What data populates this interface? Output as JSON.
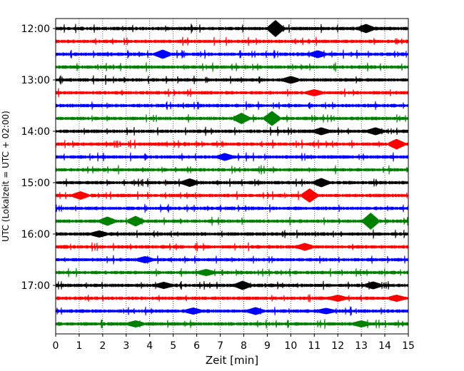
{
  "chart_data": {
    "type": "line",
    "subtype": "helicorder",
    "title": "",
    "xlabel": "Zeit  [min]",
    "ylabel": "UTC (Lokalzeit = UTC + 02:00)",
    "xlim": [
      0,
      15
    ],
    "x_ticks": [
      "0",
      "1",
      "2",
      "3",
      "4",
      "5",
      "6",
      "7",
      "8",
      "9",
      "10",
      "11",
      "12",
      "13",
      "14",
      "15"
    ],
    "y_ticks": [
      "12:00",
      "13:00",
      "14:00",
      "15:00",
      "16:00",
      "17:00"
    ],
    "trace_interval_min": 15,
    "start_time": "12:00",
    "grid": "vertical dotted at each minute",
    "legend": "none",
    "colors_cycle": [
      "#000000",
      "#ff0000",
      "#0000ff",
      "#008000"
    ],
    "series": [
      {
        "start": "12:00",
        "color": "#000000",
        "events": [
          {
            "t": 9.35,
            "amp": 1.0
          },
          {
            "t": 13.2,
            "amp": 0.45
          }
        ]
      },
      {
        "start": "12:15",
        "color": "#ff0000",
        "events": []
      },
      {
        "start": "12:30",
        "color": "#0000ff",
        "events": [
          {
            "t": 4.55,
            "amp": 0.45
          },
          {
            "t": 11.15,
            "amp": 0.35
          }
        ]
      },
      {
        "start": "12:45",
        "color": "#008000",
        "events": []
      },
      {
        "start": "13:00",
        "color": "#000000",
        "events": [
          {
            "t": 10.0,
            "amp": 0.35
          }
        ]
      },
      {
        "start": "13:15",
        "color": "#ff0000",
        "events": [
          {
            "t": 11.0,
            "amp": 0.3
          }
        ]
      },
      {
        "start": "13:30",
        "color": "#0000ff",
        "events": []
      },
      {
        "start": "13:45",
        "color": "#008000",
        "events": [
          {
            "t": 7.9,
            "amp": 0.6
          },
          {
            "t": 9.2,
            "amp": 0.85
          }
        ]
      },
      {
        "start": "14:00",
        "color": "#000000",
        "events": [
          {
            "t": 11.3,
            "amp": 0.35
          },
          {
            "t": 13.6,
            "amp": 0.35
          }
        ]
      },
      {
        "start": "14:15",
        "color": "#ff0000",
        "events": [
          {
            "t": 14.5,
            "amp": 0.55
          }
        ]
      },
      {
        "start": "14:30",
        "color": "#0000ff",
        "events": [
          {
            "t": 7.2,
            "amp": 0.35
          }
        ]
      },
      {
        "start": "14:45",
        "color": "#008000",
        "events": []
      },
      {
        "start": "15:00",
        "color": "#000000",
        "events": [
          {
            "t": 5.7,
            "amp": 0.4
          },
          {
            "t": 11.3,
            "amp": 0.45
          }
        ]
      },
      {
        "start": "15:15",
        "color": "#ff0000",
        "events": [
          {
            "t": 1.05,
            "amp": 0.4
          },
          {
            "t": 10.8,
            "amp": 0.8
          }
        ]
      },
      {
        "start": "15:30",
        "color": "#0000ff",
        "events": []
      },
      {
        "start": "15:45",
        "color": "#008000",
        "events": [
          {
            "t": 2.2,
            "amp": 0.45
          },
          {
            "t": 3.4,
            "amp": 0.55
          },
          {
            "t": 13.4,
            "amp": 1.0
          }
        ]
      },
      {
        "start": "16:00",
        "color": "#000000",
        "events": [
          {
            "t": 1.85,
            "amp": 0.3
          }
        ]
      },
      {
        "start": "16:15",
        "color": "#ff0000",
        "events": [
          {
            "t": 10.6,
            "amp": 0.35
          }
        ]
      },
      {
        "start": "16:30",
        "color": "#0000ff",
        "events": [
          {
            "t": 3.8,
            "amp": 0.3
          }
        ]
      },
      {
        "start": "16:45",
        "color": "#008000",
        "events": [
          {
            "t": 6.4,
            "amp": 0.3
          }
        ]
      },
      {
        "start": "17:00",
        "color": "#000000",
        "events": [
          {
            "t": 4.6,
            "amp": 0.3
          },
          {
            "t": 7.95,
            "amp": 0.45
          },
          {
            "t": 13.5,
            "amp": 0.35
          }
        ]
      },
      {
        "start": "17:15",
        "color": "#ff0000",
        "events": [
          {
            "t": 12.0,
            "amp": 0.3
          },
          {
            "t": 14.5,
            "amp": 0.3
          }
        ]
      },
      {
        "start": "17:30",
        "color": "#0000ff",
        "events": [
          {
            "t": 5.85,
            "amp": 0.3
          },
          {
            "t": 8.5,
            "amp": 0.35
          },
          {
            "t": 11.5,
            "amp": 0.25
          }
        ]
      },
      {
        "start": "17:45",
        "color": "#008000",
        "events": [
          {
            "t": 3.4,
            "amp": 0.3
          },
          {
            "t": 13.0,
            "amp": 0.3
          }
        ]
      }
    ]
  }
}
